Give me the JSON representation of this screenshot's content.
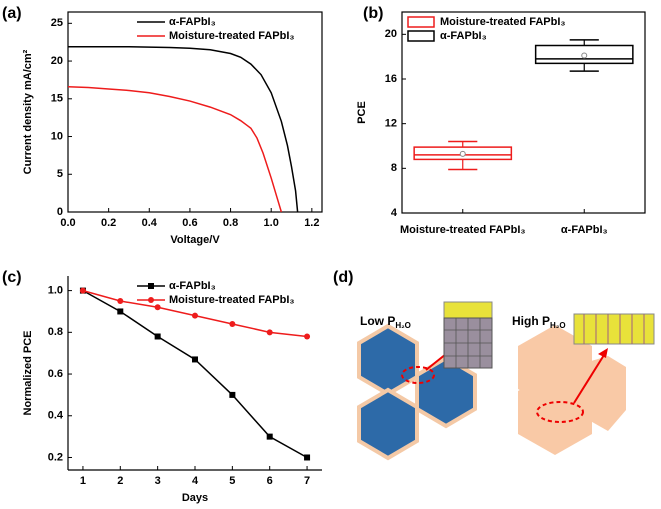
{
  "chart_data": [
    {
      "type": "line",
      "panel_label": "(a)",
      "x_label": "Voltage/V",
      "y_label": "Current density mA/cm²",
      "xlim": [
        0,
        1.25
      ],
      "ylim": [
        0,
        26.5
      ],
      "xticks": [
        {
          "value": 0,
          "label": "0.0"
        },
        0.2,
        0.4,
        0.6,
        0.8,
        {
          "value": 1,
          "label": "1.0"
        },
        1.2
      ],
      "yticks": [
        0,
        5,
        10,
        15,
        20,
        25
      ],
      "legend": "upper right",
      "markers": false,
      "series": [
        {
          "name": "α-FAPbI₃",
          "color": "#000000",
          "x": [
            0,
            0.1,
            0.2,
            0.3,
            0.4,
            0.5,
            0.6,
            0.7,
            0.8,
            0.85,
            0.9,
            0.95,
            1.0,
            1.05,
            1.08,
            1.1,
            1.12,
            1.13
          ],
          "values": [
            21.9,
            21.9,
            21.9,
            21.9,
            21.85,
            21.8,
            21.7,
            21.5,
            21.0,
            20.5,
            19.6,
            18.2,
            15.8,
            12.0,
            8.8,
            6.0,
            2.8,
            0
          ]
        },
        {
          "name": "Moisture-treated FAPbI₃",
          "color": "#ee1c1c",
          "x": [
            0,
            0.1,
            0.2,
            0.3,
            0.4,
            0.5,
            0.6,
            0.7,
            0.8,
            0.85,
            0.88,
            0.9,
            0.93,
            0.96,
            1.0,
            1.03,
            1.05
          ],
          "values": [
            16.6,
            16.5,
            16.3,
            16.1,
            15.8,
            15.3,
            14.7,
            13.9,
            12.9,
            12.1,
            11.5,
            11.1,
            9.8,
            7.8,
            4.5,
            1.8,
            0
          ]
        }
      ]
    },
    {
      "type": "box",
      "panel_label": "(b)",
      "y_label": "PCE",
      "categories": [
        "Moisture-treated FAPbI₃",
        "α-FAPbI₃"
      ],
      "ylim": [
        4,
        22
      ],
      "yticks": [
        4,
        8,
        12,
        16,
        20
      ],
      "legend": "upper left",
      "series": [
        {
          "name": "Moisture-treated FAPbI₃",
          "color": "#ee1c1c",
          "min": 7.9,
          "q1": 8.8,
          "median": 9.2,
          "q3": 9.9,
          "max": 10.4,
          "mean": 9.3
        },
        {
          "name": "α-FAPbI₃",
          "color": "#000000",
          "min": 16.7,
          "q1": 17.4,
          "median": 17.8,
          "q3": 19.0,
          "max": 19.5,
          "mean": 18.1
        }
      ]
    },
    {
      "type": "line",
      "panel_label": "(c)",
      "x_label": "Days",
      "y_label": "Normalized PCE",
      "x": [
        1,
        2,
        3,
        4,
        5,
        6,
        7
      ],
      "xlim": [
        0.6,
        7.4
      ],
      "xticks": [
        1,
        2,
        3,
        4,
        5,
        6,
        7
      ],
      "ylim": [
        0.14,
        1.07
      ],
      "yticks": [
        0.2,
        0.4,
        0.6,
        0.8,
        {
          "value": 1,
          "label": "1.0"
        }
      ],
      "legend": "upper right",
      "markers": true,
      "series": [
        {
          "name": "α-FAPbI₃",
          "color": "#000000",
          "marker": "square",
          "values": [
            1.0,
            0.9,
            0.78,
            0.67,
            0.5,
            0.3,
            0.2
          ]
        },
        {
          "name": "Moisture-treated FAPbI₃",
          "color": "#ee1c1c",
          "marker": "circle",
          "values": [
            1.0,
            0.95,
            0.92,
            0.88,
            0.84,
            0.8,
            0.78
          ]
        }
      ]
    }
  ],
  "diagram": {
    "panel_label": "(d)",
    "low_label": {
      "text": "Low P",
      "subscript": "H₂O"
    },
    "high_label": {
      "text": "High P",
      "subscript": "H₂O"
    }
  }
}
